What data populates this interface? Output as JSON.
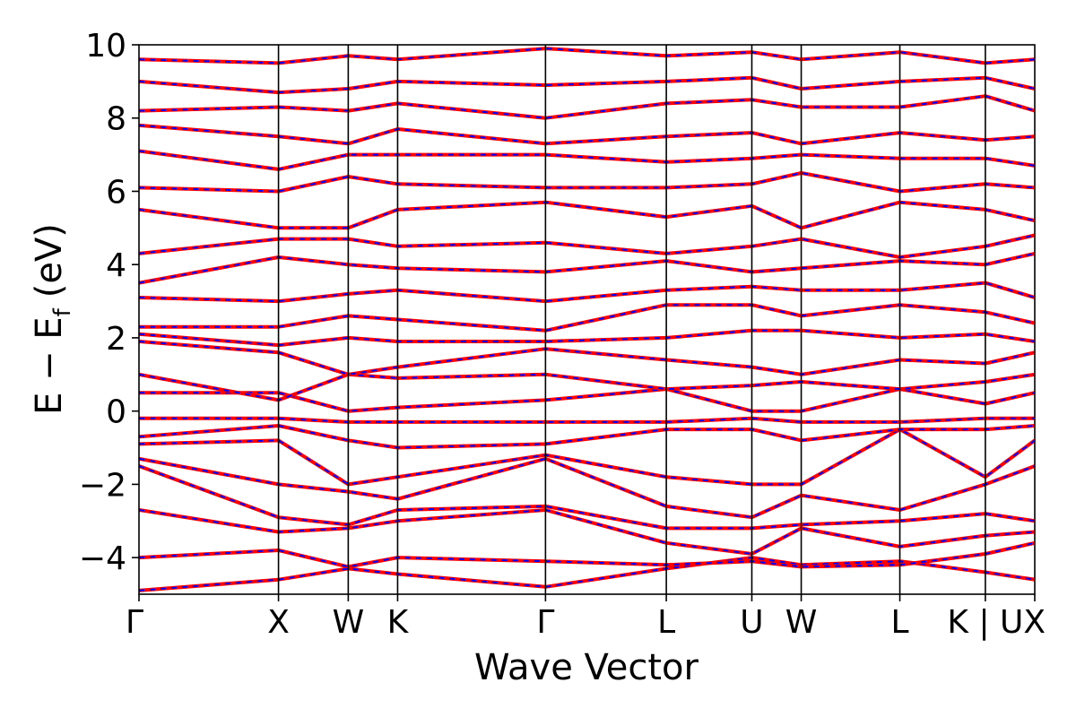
{
  "chart_data": {
    "type": "line",
    "title": "",
    "xlabel": "Wave Vector",
    "ylabel": "E − E",
    "ylabel_subscript": "f",
    "ylabel_unit": "(eV)",
    "ylim": [
      -5,
      10
    ],
    "yticks": [
      {
        "value": -4,
        "label": "−4"
      },
      {
        "value": -2,
        "label": "−2"
      },
      {
        "value": 0,
        "label": "0"
      },
      {
        "value": 2,
        "label": "2"
      },
      {
        "value": 4,
        "label": "4"
      },
      {
        "value": 6,
        "label": "6"
      },
      {
        "value": 8,
        "label": "8"
      },
      {
        "value": 10,
        "label": "10"
      }
    ],
    "kpath": [
      {
        "label": "Γ",
        "pos": 0.0
      },
      {
        "label": "X",
        "pos": 1.0
      },
      {
        "label": "W",
        "pos": 1.5
      },
      {
        "label": "K",
        "pos": 1.854
      },
      {
        "label": "Γ",
        "pos": 2.914
      },
      {
        "label": "L",
        "pos": 3.78
      },
      {
        "label": "U",
        "pos": 4.393
      },
      {
        "label": "W",
        "pos": 4.747
      },
      {
        "label": "L",
        "pos": 5.454
      },
      {
        "label": "K | U",
        "pos": 6.067
      },
      {
        "label": "X",
        "pos": 6.421
      }
    ],
    "series": [
      {
        "color": "#ff0000",
        "style": "solid"
      },
      {
        "color": "#0000ff",
        "style": "dashed"
      }
    ],
    "bands": [
      [
        -4.9,
        -4.6,
        -4.3,
        -4.45,
        -4.8,
        -4.3,
        -4.0,
        -4.2,
        -4.1,
        -4.4,
        -4.6
      ],
      [
        -4.0,
        -3.8,
        -4.25,
        -4.0,
        -4.1,
        -4.2,
        -4.1,
        -4.25,
        -4.2,
        -3.9,
        -3.6
      ],
      [
        -2.7,
        -3.3,
        -3.2,
        -3.0,
        -2.7,
        -3.6,
        -3.9,
        -3.2,
        -3.7,
        -3.4,
        -3.3
      ],
      [
        -1.5,
        -2.9,
        -3.1,
        -2.7,
        -2.6,
        -3.2,
        -3.2,
        -3.1,
        -3.0,
        -2.8,
        -3.0
      ],
      [
        -1.3,
        -2.0,
        -2.2,
        -2.4,
        -1.3,
        -2.6,
        -2.9,
        -2.3,
        -2.7,
        -2.0,
        -1.5
      ],
      [
        -0.9,
        -0.8,
        -2.0,
        -1.8,
        -1.2,
        -1.8,
        -2.0,
        -2.0,
        -0.5,
        -1.8,
        -0.8
      ],
      [
        -0.7,
        -0.4,
        -0.8,
        -1.0,
        -0.9,
        -0.5,
        -0.5,
        -0.8,
        -0.5,
        -0.5,
        -0.4
      ],
      [
        -0.2,
        -0.2,
        -0.3,
        -0.3,
        -0.3,
        -0.3,
        -0.2,
        -0.3,
        -0.3,
        -0.2,
        -0.2
      ],
      [
        0.5,
        0.5,
        0.0,
        0.1,
        0.3,
        0.6,
        0.0,
        0.0,
        0.6,
        0.2,
        0.5
      ],
      [
        1.0,
        0.3,
        1.0,
        0.9,
        1.0,
        0.6,
        0.7,
        0.8,
        0.6,
        0.8,
        1.0
      ],
      [
        1.9,
        1.6,
        1.0,
        1.2,
        1.7,
        1.4,
        1.2,
        1.0,
        1.4,
        1.3,
        1.6
      ],
      [
        2.1,
        1.8,
        2.0,
        1.9,
        1.9,
        2.0,
        2.2,
        2.2,
        2.0,
        2.1,
        1.9
      ],
      [
        2.3,
        2.3,
        2.6,
        2.5,
        2.2,
        2.9,
        2.9,
        2.6,
        2.9,
        2.7,
        2.4
      ],
      [
        3.1,
        3.0,
        3.2,
        3.3,
        3.0,
        3.3,
        3.4,
        3.3,
        3.3,
        3.5,
        3.1
      ],
      [
        3.5,
        4.2,
        4.0,
        3.9,
        3.8,
        4.1,
        3.8,
        3.9,
        4.1,
        4.0,
        4.3
      ],
      [
        4.3,
        4.7,
        4.7,
        4.5,
        4.6,
        4.3,
        4.5,
        4.7,
        4.2,
        4.5,
        4.8
      ],
      [
        5.5,
        5.0,
        5.0,
        5.5,
        5.7,
        5.3,
        5.6,
        5.0,
        5.7,
        5.5,
        5.2
      ],
      [
        6.1,
        6.0,
        6.4,
        6.2,
        6.1,
        6.1,
        6.2,
        6.5,
        6.0,
        6.2,
        6.1
      ],
      [
        7.1,
        6.6,
        7.0,
        7.0,
        7.0,
        6.8,
        6.9,
        7.0,
        6.9,
        6.9,
        6.7
      ],
      [
        7.8,
        7.5,
        7.3,
        7.7,
        7.3,
        7.5,
        7.6,
        7.3,
        7.6,
        7.4,
        7.5
      ],
      [
        8.2,
        8.3,
        8.2,
        8.4,
        8.0,
        8.4,
        8.5,
        8.3,
        8.3,
        8.6,
        8.2
      ],
      [
        9.0,
        8.7,
        8.8,
        9.0,
        8.9,
        9.0,
        9.1,
        8.8,
        9.0,
        9.1,
        8.8
      ],
      [
        9.6,
        9.5,
        9.7,
        9.6,
        9.9,
        9.7,
        9.8,
        9.6,
        9.8,
        9.5,
        9.6
      ]
    ]
  }
}
